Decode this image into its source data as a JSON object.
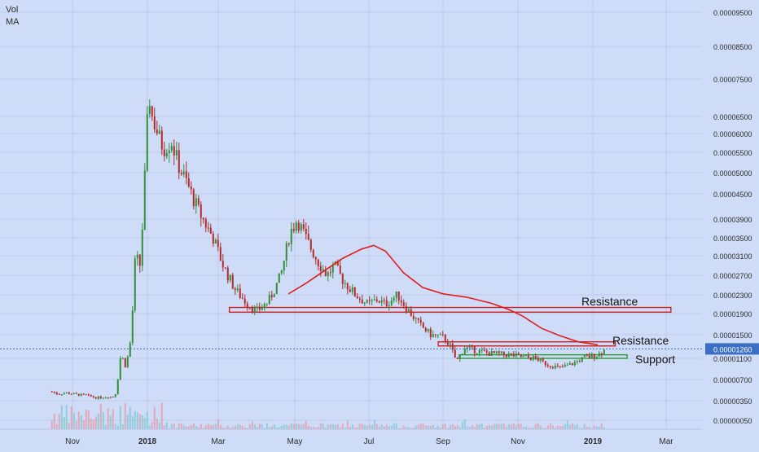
{
  "indicators": {
    "vol": "Vol",
    "ma": "MA"
  },
  "colors": {
    "background": "#cfdcf7",
    "up_candle": "#2f8f3a",
    "down_candle": "#b32b2b",
    "ma_line": "#e11d1d",
    "volume": "#7ec8d0",
    "resistance": "#d11f1f",
    "support": "#2e9a3a",
    "current_price_badge": "#3b6fc4",
    "axis_text": "#2c2c2c"
  },
  "chart_data": {
    "type": "candlestick",
    "title": "",
    "x_axis": {
      "ticks": [
        "Nov",
        "2018",
        "Mar",
        "May",
        "Jul",
        "Sep",
        "Nov",
        "2019",
        "Mar"
      ],
      "bold_ticks": [
        "2018",
        "2019"
      ]
    },
    "y_axis": {
      "scale": "log",
      "ticks": [
        "0.00009500",
        "0.00008500",
        "0.00007500",
        "0.00006500",
        "0.00006000",
        "0.00005500",
        "0.00005000",
        "0.00004500",
        "0.00003900",
        "0.00003500",
        "0.00003100",
        "0.00002700",
        "0.00002300",
        "0.00001900",
        "0.00001500",
        "0.00001100",
        "0.00000700",
        "0.00000350",
        "0.00000050"
      ],
      "current_price": "0.00001260"
    },
    "price_path": [
      [
        "2017-10-15",
        5e-06
      ],
      [
        "2017-10-20",
        4.6e-06
      ],
      [
        "2017-10-27",
        4.8e-06
      ],
      [
        "2017-11-05",
        4.5e-06
      ],
      [
        "2017-11-12",
        4.4e-06
      ],
      [
        "2017-11-20",
        4e-06
      ],
      [
        "2017-11-28",
        4.1e-06
      ],
      [
        "2017-12-05",
        4.2e-06
      ],
      [
        "2017-12-10",
        1.2e-05
      ],
      [
        "2017-12-14",
        9.5e-06
      ],
      [
        "2017-12-18",
        1.4e-05
      ],
      [
        "2017-12-22",
        3.1e-05
      ],
      [
        "2017-12-26",
        2.9e-05
      ],
      [
        "2017-12-30",
        5e-05
      ],
      [
        "2018-01-02",
        7.2e-05
      ],
      [
        "2018-01-05",
        6.5e-05
      ],
      [
        "2018-01-10",
        6e-05
      ],
      [
        "2018-01-15",
        5.6e-05
      ],
      [
        "2018-01-22",
        5.8e-05
      ],
      [
        "2018-01-28",
        5.2e-05
      ],
      [
        "2018-02-05",
        4.7e-05
      ],
      [
        "2018-02-15",
        4e-05
      ],
      [
        "2018-02-25",
        3.5e-05
      ],
      [
        "2018-03-05",
        2.9e-05
      ],
      [
        "2018-03-15",
        2.4e-05
      ],
      [
        "2018-03-25",
        2.1e-05
      ],
      [
        "2018-04-01",
        1.95e-05
      ],
      [
        "2018-04-10",
        2.15e-05
      ],
      [
        "2018-04-20",
        2.7e-05
      ],
      [
        "2018-04-27",
        3.6e-05
      ],
      [
        "2018-05-03",
        3.9e-05
      ],
      [
        "2018-05-10",
        3.5e-05
      ],
      [
        "2018-05-20",
        3e-05
      ],
      [
        "2018-05-28",
        2.7e-05
      ],
      [
        "2018-06-03",
        2.9e-05
      ],
      [
        "2018-06-10",
        2.6e-05
      ],
      [
        "2018-06-20",
        2.3e-05
      ],
      [
        "2018-06-30",
        2.1e-05
      ],
      [
        "2018-07-08",
        2.2e-05
      ],
      [
        "2018-07-15",
        2.1e-05
      ],
      [
        "2018-07-25",
        2.3e-05
      ],
      [
        "2018-08-02",
        2e-05
      ],
      [
        "2018-08-12",
        1.7e-05
      ],
      [
        "2018-08-22",
        1.5e-05
      ],
      [
        "2018-09-01",
        1.45e-05
      ],
      [
        "2018-09-06",
        1.35e-05
      ],
      [
        "2018-09-12",
        1.05e-05
      ],
      [
        "2018-09-18",
        1.28e-05
      ],
      [
        "2018-09-28",
        1.23e-05
      ],
      [
        "2018-10-10",
        1.18e-05
      ],
      [
        "2018-10-25",
        1.16e-05
      ],
      [
        "2018-11-05",
        1.12e-05
      ],
      [
        "2018-11-15",
        1.1e-05
      ],
      [
        "2018-11-25",
        9.8e-06
      ],
      [
        "2018-12-05",
        9.2e-06
      ],
      [
        "2018-12-15",
        1e-05
      ],
      [
        "2018-12-25",
        1.11e-05
      ],
      [
        "2019-01-05",
        1.16e-05
      ],
      [
        "2019-01-12",
        1.26e-05
      ]
    ],
    "moving_average": [
      [
        "2018-04-26",
        2.32e-05
      ],
      [
        "2018-05-10",
        2.53e-05
      ],
      [
        "2018-05-25",
        2.78e-05
      ],
      [
        "2018-06-10",
        3.05e-05
      ],
      [
        "2018-06-25",
        3.25e-05
      ],
      [
        "2018-07-05",
        3.33e-05
      ],
      [
        "2018-07-15",
        3.2e-05
      ],
      [
        "2018-07-30",
        2.75e-05
      ],
      [
        "2018-08-15",
        2.45e-05
      ],
      [
        "2018-09-01",
        2.32e-05
      ],
      [
        "2018-09-20",
        2.25e-05
      ],
      [
        "2018-10-10",
        2.12e-05
      ],
      [
        "2018-10-25",
        1.98e-05
      ],
      [
        "2018-11-05",
        1.85e-05
      ],
      [
        "2018-11-20",
        1.62e-05
      ],
      [
        "2018-12-05",
        1.48e-05
      ],
      [
        "2018-12-20",
        1.38e-05
      ],
      [
        "2019-01-05",
        1.33e-05
      ]
    ],
    "zones": [
      {
        "label": "Resistance",
        "kind": "resistance",
        "from": "2018-03-10",
        "to": "2019-03-05",
        "low": 1.93e-05,
        "high": 2.03e-05
      },
      {
        "label": "Resistance",
        "kind": "resistance",
        "from": "2018-08-28",
        "to": "2019-01-20",
        "low": 1.31e-05,
        "high": 1.38e-05
      },
      {
        "label": "Support",
        "kind": "support",
        "from": "2018-09-14",
        "to": "2019-01-30",
        "low": 1.1e-05,
        "high": 1.16e-05
      }
    ]
  }
}
